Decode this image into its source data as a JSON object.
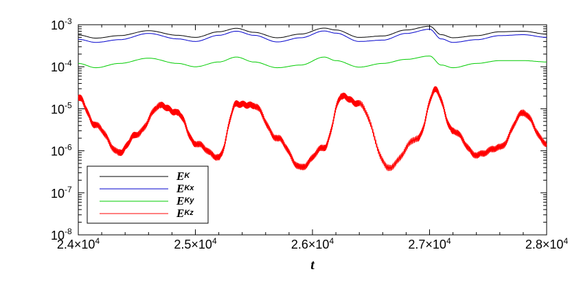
{
  "chart_data": {
    "type": "line",
    "xlabel": "t",
    "ylabel": "",
    "title": "",
    "xlim": [
      24000,
      28000
    ],
    "ylim": [
      1e-08,
      0.001
    ],
    "yscale": "log",
    "x_ticks": [
      {
        "value": 24000,
        "mant": "2.4",
        "exp": "4"
      },
      {
        "value": 25000,
        "mant": "2.5",
        "exp": "4"
      },
      {
        "value": 26000,
        "mant": "2.6",
        "exp": "4"
      },
      {
        "value": 27000,
        "mant": "2.7",
        "exp": "4"
      },
      {
        "value": 28000,
        "mant": "2.8",
        "exp": "4"
      }
    ],
    "y_ticks": [
      {
        "value": 1e-08,
        "base": "10",
        "exp": "-8"
      },
      {
        "value": 1e-07,
        "base": "10",
        "exp": "-7"
      },
      {
        "value": 1e-06,
        "base": "10",
        "exp": "-6"
      },
      {
        "value": 1e-05,
        "base": "10",
        "exp": "-5"
      },
      {
        "value": 0.0001,
        "base": "10",
        "exp": "-4"
      },
      {
        "value": 0.001,
        "base": "10",
        "exp": "-3"
      }
    ],
    "legend_position": "bottom-left",
    "series": [
      {
        "name_main": "E",
        "name_sub": "K",
        "color": "#000000",
        "x": [
          24000,
          24150,
          24350,
          24600,
          24850,
          25000,
          25200,
          25350,
          25500,
          25700,
          25900,
          26100,
          26200,
          26400,
          26600,
          26800,
          27000,
          27100,
          27200,
          27400,
          27600,
          27800,
          28000
        ],
        "y": [
          0.00057,
          0.00048,
          0.00055,
          0.00072,
          0.00056,
          0.0005,
          0.00068,
          0.00082,
          0.00066,
          0.00049,
          0.0006,
          0.00083,
          0.00075,
          0.0005,
          0.00054,
          0.00075,
          0.00092,
          0.00058,
          0.00049,
          0.00055,
          0.00068,
          0.0007,
          0.0006
        ]
      },
      {
        "name_main": "E",
        "name_sub": "Kx",
        "color": "#0000cc",
        "x": [
          24000,
          24150,
          24350,
          24600,
          24850,
          25000,
          25200,
          25350,
          25500,
          25700,
          25900,
          26100,
          26200,
          26400,
          26600,
          26800,
          27000,
          27100,
          27200,
          27400,
          27600,
          27800,
          28000
        ],
        "y": [
          0.00045,
          0.00038,
          0.00044,
          0.00062,
          0.00046,
          0.0004,
          0.00056,
          0.0007,
          0.00056,
          0.00039,
          0.00049,
          0.00071,
          0.00063,
          0.0004,
          0.00043,
          0.00062,
          0.00078,
          0.00046,
          0.00038,
          0.00044,
          0.00055,
          0.00058,
          0.0005
        ]
      },
      {
        "name_main": "E",
        "name_sub": "Ky",
        "color": "#00cc00",
        "x": [
          24000,
          24150,
          24350,
          24600,
          24850,
          25000,
          25200,
          25350,
          25500,
          25700,
          25900,
          26100,
          26200,
          26400,
          26600,
          26800,
          27000,
          27100,
          27200,
          27400,
          27600,
          27800,
          28000
        ],
        "y": [
          0.00012,
          9.5e-05,
          0.00012,
          0.00016,
          0.00012,
          0.0001,
          0.00013,
          0.00017,
          0.00013,
          9.5e-05,
          0.00011,
          0.00017,
          0.00014,
          9.8e-05,
          0.00012,
          0.00015,
          0.00018,
          0.00011,
          9.5e-05,
          0.00012,
          0.00014,
          0.00014,
          0.00013
        ]
      },
      {
        "name_main": "E",
        "name_sub": "Kz",
        "color": "#ff0000",
        "x": [
          24000,
          24150,
          24350,
          24500,
          24700,
          24850,
          25000,
          25200,
          25350,
          25500,
          25700,
          25900,
          26100,
          26250,
          26400,
          26650,
          26900,
          27050,
          27200,
          27400,
          27600,
          27800,
          28000
        ],
        "y": [
          1.9e-05,
          4e-06,
          9e-07,
          2.5e-06,
          1.2e-05,
          8e-06,
          1.5e-06,
          7e-07,
          1.3e-05,
          1.2e-05,
          2e-06,
          4e-07,
          1.2e-06,
          2e-05,
          1.3e-05,
          4e-07,
          2e-06,
          2.8e-05,
          3e-06,
          8e-07,
          1.2e-06,
          8e-06,
          1.5e-06
        ]
      }
    ]
  }
}
